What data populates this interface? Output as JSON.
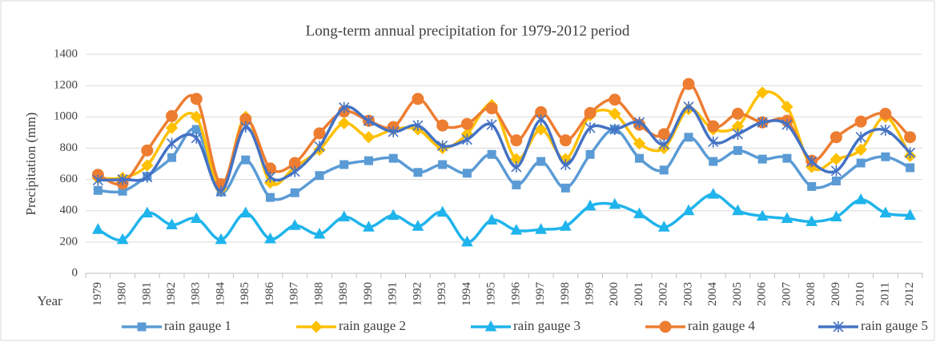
{
  "chart_data": {
    "type": "line",
    "title": "Long-term annual precipitation for 1979-2012 period",
    "y_label": "Precipitation (mm)",
    "x_label": "Year",
    "categories": [
      "1979",
      "1980",
      "1981",
      "1982",
      "1983",
      "1984",
      "1985",
      "1986",
      "1987",
      "1988",
      "1989",
      "1990",
      "1991",
      "1992",
      "1993",
      "1994",
      "1995",
      "1996",
      "1997",
      "1998",
      "1999",
      "2000",
      "2001",
      "2002",
      "2003",
      "2004",
      "2005",
      "2006",
      "2007",
      "2008",
      "2009",
      "2010",
      "2011",
      "2012"
    ],
    "series": [
      {
        "name": "rain gauge 1",
        "color": "#5b9bd5",
        "marker": "square",
        "values": [
          530,
          525,
          620,
          740,
          920,
          520,
          725,
          485,
          515,
          625,
          695,
          720,
          735,
          645,
          695,
          640,
          760,
          565,
          715,
          545,
          760,
          920,
          735,
          660,
          870,
          715,
          785,
          730,
          735,
          555,
          590,
          705,
          745,
          675
        ]
      },
      {
        "name": "rain gauge 2",
        "color": "#ffc000",
        "marker": "diamond",
        "values": [
          610,
          610,
          690,
          930,
          1000,
          540,
          1000,
          580,
          680,
          790,
          960,
          870,
          920,
          920,
          800,
          890,
          1075,
          730,
          920,
          730,
          1010,
          1020,
          830,
          800,
          1050,
          920,
          940,
          1155,
          1065,
          680,
          730,
          790,
          1000,
          750
        ]
      },
      {
        "name": "rain gauge 3",
        "color": "#1fb4ec",
        "marker": "triangle",
        "values": [
          280,
          215,
          385,
          310,
          350,
          215,
          385,
          220,
          305,
          250,
          360,
          295,
          370,
          300,
          390,
          200,
          340,
          275,
          280,
          300,
          430,
          440,
          380,
          295,
          400,
          505,
          400,
          365,
          350,
          330,
          360,
          470,
          385,
          370
        ]
      },
      {
        "name": "rain gauge 4",
        "color": "#ed7d31",
        "marker": "circle",
        "values": [
          630,
          575,
          785,
          1005,
          1115,
          570,
          985,
          670,
          705,
          895,
          1035,
          975,
          935,
          1115,
          945,
          955,
          1055,
          850,
          1030,
          850,
          1025,
          1110,
          950,
          890,
          1210,
          940,
          1020,
          965,
          975,
          720,
          870,
          970,
          1020,
          870
        ]
      },
      {
        "name": "rain gauge 5",
        "color": "#4472c4",
        "marker": "asterisk",
        "values": [
          595,
          600,
          615,
          830,
          865,
          525,
          935,
          615,
          650,
          810,
          1060,
          975,
          905,
          945,
          815,
          855,
          950,
          680,
          980,
          695,
          930,
          920,
          965,
          825,
          1065,
          840,
          890,
          965,
          950,
          715,
          655,
          870,
          915,
          770
        ]
      }
    ],
    "ylim": [
      0,
      1400
    ],
    "yticks": [
      0,
      200,
      400,
      600,
      800,
      1000,
      1200,
      1400
    ],
    "grid": true,
    "smooth": true,
    "legend": "bottom"
  }
}
